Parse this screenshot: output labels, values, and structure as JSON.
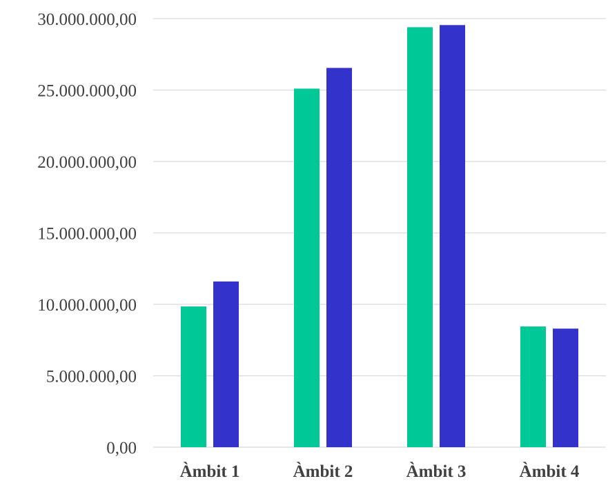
{
  "chart_data": {
    "type": "bar",
    "categories": [
      "Àmbit 1",
      "Àmbit 2",
      "Àmbit 3",
      "Àmbit 4"
    ],
    "series": [
      {
        "values": [
          9850000,
          25100000,
          29400000,
          8450000
        ],
        "color": "#00c896"
      },
      {
        "values": [
          11600000,
          26550000,
          29550000,
          8300000
        ],
        "color": "#3333cc"
      }
    ],
    "yticks": [
      "0,00",
      "5.000.000,00",
      "10.000.000,00",
      "15.000.000,00",
      "20.000.000,00",
      "25.000.000,00",
      "30.000.000,00"
    ],
    "ylim": [
      0,
      30000000
    ],
    "grid": true,
    "legend": "none"
  }
}
